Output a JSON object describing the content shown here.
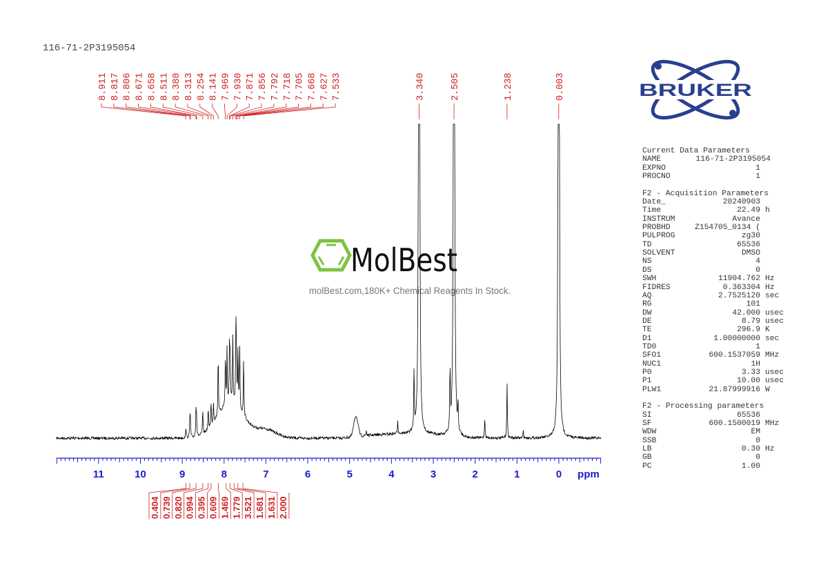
{
  "sample_title": "116-71-2P3195054",
  "watermark": {
    "brand": "MolBest",
    "tagline": "molBest.com,180K+ Chemical Reagents In Stock.",
    "color": "#7dc242"
  },
  "bruker_logo": {
    "text": "BRUKER",
    "color": "#2a3f8f"
  },
  "parameters": {
    "current": {
      "title": "Current Data Parameters",
      "rows": [
        {
          "k": "NAME",
          "v": "116-71-2P3195054",
          "u": ""
        },
        {
          "k": "EXPNO",
          "v": "1",
          "u": ""
        },
        {
          "k": "PROCNO",
          "v": "1",
          "u": ""
        }
      ]
    },
    "acquisition": {
      "title": "F2 - Acquisition Parameters",
      "rows": [
        {
          "k": "Date_",
          "v": "20240903",
          "u": ""
        },
        {
          "k": "Time",
          "v": "22.49",
          "u": "h"
        },
        {
          "k": "INSTRUM",
          "v": "Avance",
          "u": ""
        },
        {
          "k": "PROBHD",
          "v": "Z154705_0134 (",
          "u": ""
        },
        {
          "k": "PULPROG",
          "v": "zg30",
          "u": ""
        },
        {
          "k": "TD",
          "v": "65536",
          "u": ""
        },
        {
          "k": "SOLVENT",
          "v": "DMSO",
          "u": ""
        },
        {
          "k": "NS",
          "v": "4",
          "u": ""
        },
        {
          "k": "DS",
          "v": "0",
          "u": ""
        },
        {
          "k": "SWH",
          "v": "11904.762",
          "u": "Hz"
        },
        {
          "k": "FIDRES",
          "v": "0.363304",
          "u": "Hz"
        },
        {
          "k": "AQ",
          "v": "2.7525120",
          "u": "sec"
        },
        {
          "k": "RG",
          "v": "101",
          "u": ""
        },
        {
          "k": "DW",
          "v": "42.000",
          "u": "usec"
        },
        {
          "k": "DE",
          "v": "8.79",
          "u": "usec"
        },
        {
          "k": "TE",
          "v": "296.9",
          "u": "K"
        },
        {
          "k": "D1",
          "v": "1.00000000",
          "u": "sec"
        },
        {
          "k": "TD0",
          "v": "1",
          "u": ""
        },
        {
          "k": "SFO1",
          "v": "600.1537059",
          "u": "MHz"
        },
        {
          "k": "NUC1",
          "v": "1H",
          "u": ""
        },
        {
          "k": "P0",
          "v": "3.33",
          "u": "usec"
        },
        {
          "k": "P1",
          "v": "10.00",
          "u": "usec"
        },
        {
          "k": "PLW1",
          "v": "21.87999916",
          "u": "W"
        }
      ]
    },
    "processing": {
      "title": "F2 - Processing parameters",
      "rows": [
        {
          "k": "SI",
          "v": "65536",
          "u": ""
        },
        {
          "k": "SF",
          "v": "600.1500019",
          "u": "MHz"
        },
        {
          "k": "WDW",
          "v": "EM",
          "u": ""
        },
        {
          "k": "SSB",
          "v": "0",
          "u": ""
        },
        {
          "k": "LB",
          "v": "0.30",
          "u": "Hz"
        },
        {
          "k": "GB",
          "v": "0",
          "u": ""
        },
        {
          "k": "PC",
          "v": "1.00",
          "u": ""
        }
      ]
    }
  },
  "chart_data": {
    "type": "line",
    "xlabel": "ppm",
    "xlim": [
      12.0,
      -1.0
    ],
    "x_reversed": true,
    "x_ticks": [
      "11",
      "10",
      "9",
      "8",
      "7",
      "6",
      "5",
      "4",
      "3",
      "2",
      "1",
      "0"
    ],
    "grid": false,
    "colors": {
      "spectrum": "#000000",
      "labels": "#cc2222",
      "axis": "#1a1acc"
    },
    "peak_labels": [
      "8.911",
      "8.817",
      "8.806",
      "8.671",
      "8.658",
      "8.511",
      "8.380",
      "8.313",
      "8.254",
      "8.141",
      "7.969",
      "7.930",
      "7.871",
      "7.856",
      "7.792",
      "7.718",
      "7.705",
      "7.668",
      "7.627",
      "7.533",
      "3.340",
      "2.505",
      "1.238",
      "0.003"
    ],
    "integrals": [
      {
        "ppm": 8.91,
        "value": "0.404"
      },
      {
        "ppm": 8.82,
        "value": "0.739"
      },
      {
        "ppm": 8.67,
        "value": "0.820"
      },
      {
        "ppm": 8.51,
        "value": "0.994"
      },
      {
        "ppm": 8.38,
        "value": "0.395"
      },
      {
        "ppm": 8.31,
        "value": "0.609"
      },
      {
        "ppm": 8.14,
        "value": "1.469"
      },
      {
        "ppm": 7.95,
        "value": "1.779"
      },
      {
        "ppm": 7.86,
        "value": "3.521"
      },
      {
        "ppm": 7.76,
        "value": "1.681"
      },
      {
        "ppm": 7.67,
        "value": "1.631"
      },
      {
        "ppm": 7.55,
        "value": "2.000"
      }
    ],
    "peaks": [
      {
        "ppm": 8.911,
        "i": 0.15
      },
      {
        "ppm": 8.817,
        "i": 0.3
      },
      {
        "ppm": 8.806,
        "i": 0.2
      },
      {
        "ppm": 8.671,
        "i": 0.4
      },
      {
        "ppm": 8.658,
        "i": 0.25
      },
      {
        "ppm": 8.511,
        "i": 0.35
      },
      {
        "ppm": 8.38,
        "i": 0.3
      },
      {
        "ppm": 8.313,
        "i": 0.35
      },
      {
        "ppm": 8.254,
        "i": 0.3
      },
      {
        "ppm": 8.141,
        "i": 0.9
      },
      {
        "ppm": 7.969,
        "i": 0.7
      },
      {
        "ppm": 7.93,
        "i": 0.8
      },
      {
        "ppm": 7.871,
        "i": 0.85
      },
      {
        "ppm": 7.856,
        "i": 0.6
      },
      {
        "ppm": 7.792,
        "i": 1.0
      },
      {
        "ppm": 7.718,
        "i": 1.05
      },
      {
        "ppm": 7.705,
        "i": 0.7
      },
      {
        "ppm": 7.668,
        "i": 0.8
      },
      {
        "ppm": 7.627,
        "i": 0.9
      },
      {
        "ppm": 7.533,
        "i": 0.85
      },
      {
        "ppm": 3.34,
        "i": 50
      },
      {
        "ppm": 2.505,
        "i": 50
      },
      {
        "ppm": 1.238,
        "i": 0.8
      },
      {
        "ppm": 0.003,
        "i": 50
      },
      {
        "ppm": 3.46,
        "i": 0.9
      },
      {
        "ppm": 2.6,
        "i": 0.9
      },
      {
        "ppm": 2.41,
        "i": 0.4
      },
      {
        "ppm": 3.85,
        "i": 0.2
      },
      {
        "ppm": 1.77,
        "i": 0.3
      },
      {
        "ppm": 4.6,
        "i": 0.08
      },
      {
        "ppm": 0.85,
        "i": 0.1
      }
    ],
    "broad": [
      {
        "ppm": 7.85,
        "i": 0.5,
        "w": 0.45
      },
      {
        "ppm": 7.0,
        "i": 0.12,
        "w": 0.35
      },
      {
        "ppm": 4.85,
        "i": 0.3,
        "w": 0.07
      }
    ]
  }
}
